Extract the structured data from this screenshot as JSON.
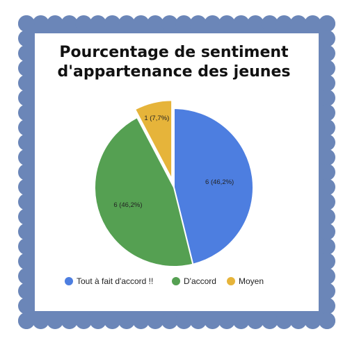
{
  "frame": {
    "border_color": "#6b86b8",
    "background": "#ffffff"
  },
  "chart_data": {
    "type": "pie",
    "title": [
      "Pourcentage de sentiment",
      "d'appartenance des jeunes"
    ],
    "slices": [
      {
        "name": "Tout à fait d'accord !!",
        "value": 6,
        "percent": 46.2,
        "label": "6 (46,2%)",
        "color": "#4d7ee0",
        "exploded": false
      },
      {
        "name": "D'accord",
        "value": 6,
        "percent": 46.2,
        "label": "6 (46,2%)",
        "color": "#55a052",
        "exploded": false
      },
      {
        "name": "Moyen",
        "value": 1,
        "percent": 7.7,
        "label": "1 (7,7%)",
        "color": "#e6b43a",
        "exploded": true
      }
    ],
    "legend": [
      "Tout à fait d'accord !!",
      "D'accord",
      "Moyen"
    ],
    "legend_position": "bottom"
  }
}
